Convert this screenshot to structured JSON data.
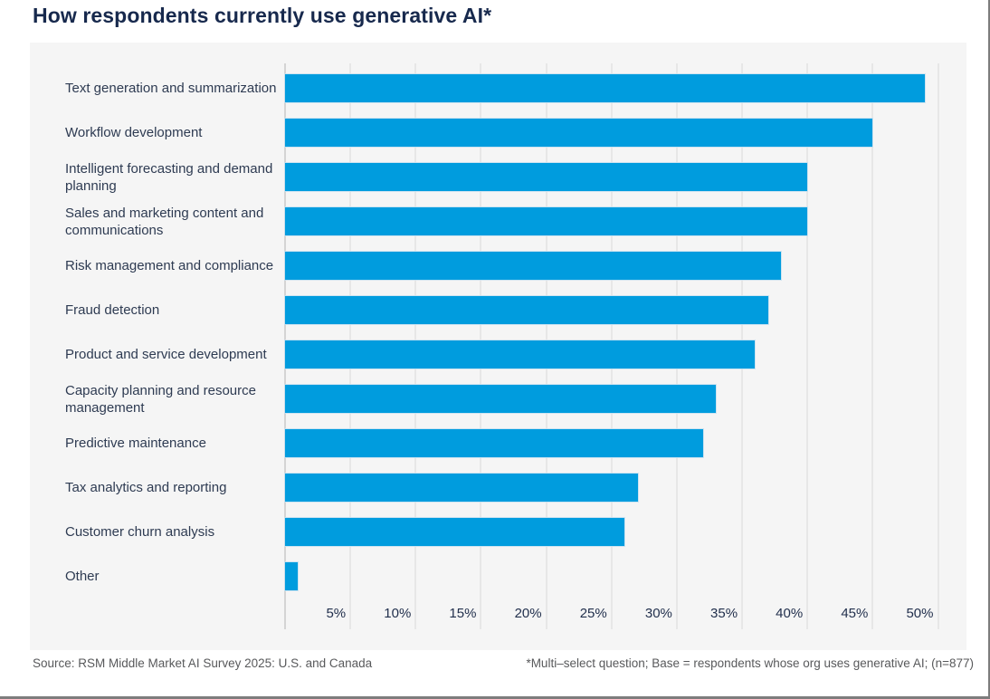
{
  "title": "How respondents currently use generative AI*",
  "chart_data": {
    "type": "bar",
    "orientation": "horizontal",
    "title": "How respondents currently use generative AI*",
    "categories": [
      "Text generation and summarization",
      "Workflow development",
      "Intelligent forecasting and demand planning",
      "Sales and marketing content and communications",
      "Risk management and compliance",
      "Fraud detection",
      "Product and service development",
      "Capacity planning and resource management",
      "Predictive maintenance",
      "Tax analytics and reporting",
      "Customer churn analysis",
      "Other"
    ],
    "values": [
      49,
      45,
      40,
      40,
      38,
      37,
      36,
      33,
      32,
      27,
      26,
      1
    ],
    "unit": "%",
    "xlabel": "",
    "ylabel": "",
    "xlim": [
      0,
      52
    ],
    "x_ticks": [
      5,
      10,
      15,
      20,
      25,
      30,
      35,
      40,
      45,
      50
    ],
    "x_tick_labels": [
      "5%",
      "10%",
      "15%",
      "20%",
      "25%",
      "30%",
      "35%",
      "40%",
      "45%",
      "50%"
    ],
    "grid": "vertical-gridlines-on",
    "legend": "none",
    "bar_color": "#009cde"
  },
  "footer": {
    "source": "Source: RSM Middle Market AI Survey 2025: U.S. and Canada",
    "note": "*Multi–select question; Base = respondents whose org uses generative AI; (n=877)"
  },
  "colors": {
    "bar": "#009cde",
    "title_text": "#17294d",
    "category_text": "#2e3b52",
    "tick_text": "#22304d",
    "panel_background": "#f5f5f5",
    "gridline": "#e7e7e7",
    "axis_line": "#d4d4d4",
    "footer_text": "#58595b",
    "page_border": "#7d7d7d"
  }
}
